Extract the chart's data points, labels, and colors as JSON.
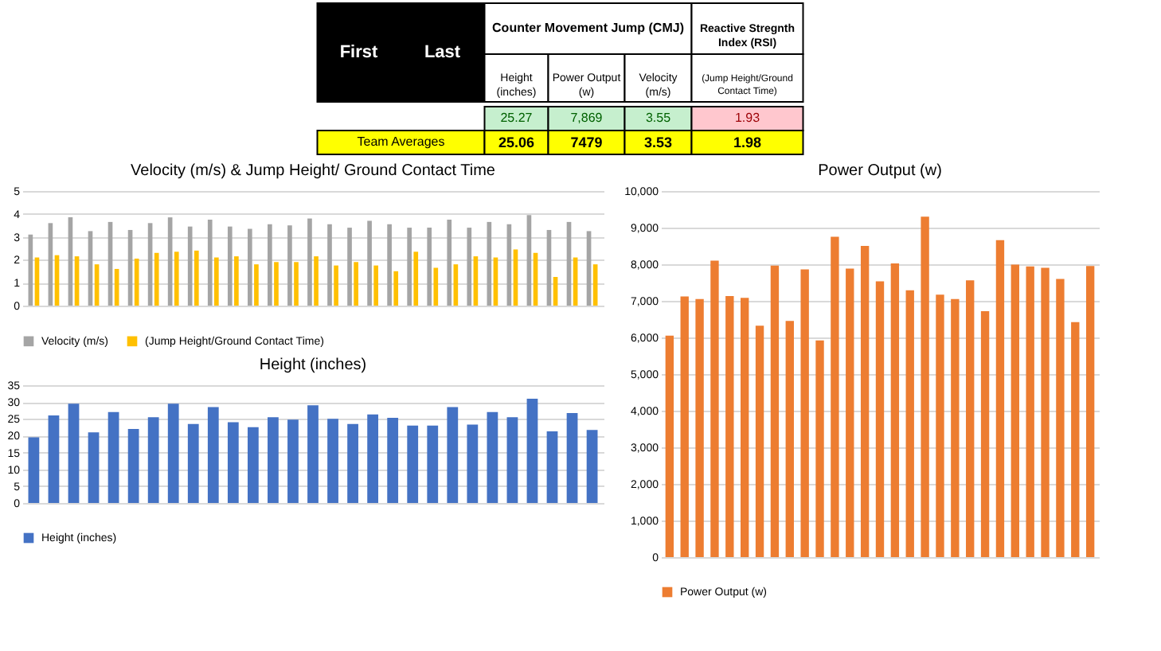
{
  "chart_data": [
    {
      "type": "other",
      "annotations": [
        "First",
        "Last",
        "Counter Movement Jump (CMJ)",
        "Reactive Stregnth Index (RSI)",
        "Height (inches)",
        "Power Output (w)",
        "Velocity (m/s)",
        "(Jump Height/Ground Contact Time)",
        "25.27",
        "7,869",
        "3.55",
        "1.93",
        "Team Averages",
        "25.06",
        "7479",
        "3.53",
        "1.98"
      ]
    },
    {
      "type": "bar",
      "title": "Velocity (m/s) & Jump Height/ Ground Contact Time",
      "categories": [
        null,
        null,
        null,
        null,
        null,
        null,
        null,
        null,
        null,
        null,
        null,
        null,
        null,
        null,
        null,
        null,
        null,
        null,
        null,
        null,
        null,
        null,
        null,
        null,
        null,
        null,
        null,
        null,
        null
      ],
      "series": [
        {
          "name": "Velocity (m/s)",
          "color": "#a5a5a5",
          "values": [
            3.1,
            3.6,
            3.85,
            3.25,
            3.65,
            3.3,
            3.6,
            3.85,
            3.45,
            3.75,
            3.45,
            3.35,
            3.55,
            3.5,
            3.8,
            3.55,
            3.4,
            3.7,
            3.55,
            3.4,
            3.4,
            3.75,
            3.4,
            3.65,
            3.55,
            3.95,
            3.3,
            3.65,
            3.25
          ]
        },
        {
          "name": "(Jump Height/Ground Contact Time)",
          "color": "#ffc000",
          "values": [
            2.1,
            2.2,
            2.15,
            1.8,
            1.6,
            2.05,
            2.3,
            2.35,
            2.4,
            2.1,
            2.15,
            1.8,
            1.9,
            1.9,
            2.15,
            1.75,
            1.9,
            1.75,
            1.5,
            2.35,
            1.65,
            1.8,
            2.15,
            2.1,
            2.45,
            2.3,
            1.25,
            2.1,
            1.8
          ]
        }
      ],
      "ylim": [
        0,
        5
      ],
      "yticks": [
        0,
        1,
        2,
        3,
        4,
        5
      ],
      "grid": "y",
      "legend": "bottom",
      "tick_labels": "y"
    },
    {
      "type": "bar",
      "title": "Height (inches)",
      "categories": [
        null,
        null,
        null,
        null,
        null,
        null,
        null,
        null,
        null,
        null,
        null,
        null,
        null,
        null,
        null,
        null,
        null,
        null,
        null,
        null,
        null,
        null,
        null,
        null,
        null,
        null,
        null,
        null,
        null
      ],
      "series": [
        {
          "name": "Height (inches)",
          "color": "#4472c4",
          "values": [
            19.5,
            26,
            29.5,
            21,
            27,
            22,
            25.5,
            29.5,
            23.5,
            28.5,
            24,
            22.5,
            25.5,
            24.8,
            29,
            25,
            23.5,
            26.3,
            25.3,
            23,
            23,
            28.5,
            23.3,
            27,
            25.5,
            31,
            21.3,
            26.7,
            21.7
          ]
        }
      ],
      "ylim": [
        0,
        35
      ],
      "yticks": [
        0,
        5,
        10,
        15,
        20,
        25,
        30,
        35
      ],
      "grid": "y",
      "legend": "bottom",
      "tick_labels": "y"
    },
    {
      "type": "bar",
      "title": "Power Output (w)",
      "categories": [
        null,
        null,
        null,
        null,
        null,
        null,
        null,
        null,
        null,
        null,
        null,
        null,
        null,
        null,
        null,
        null,
        null,
        null,
        null,
        null,
        null,
        null,
        null,
        null,
        null,
        null,
        null,
        null,
        null
      ],
      "series": [
        {
          "name": "Power Output (w)",
          "color": "#ed7d31",
          "values": [
            6050,
            7120,
            7050,
            8100,
            7130,
            7080,
            6320,
            7960,
            6450,
            7860,
            5920,
            8750,
            7880,
            8500,
            7530,
            8020,
            7290,
            9300,
            7170,
            7050,
            7560,
            6720,
            8660,
            7990,
            7940,
            7900,
            7600,
            6420,
            7950
          ]
        }
      ],
      "ylim": [
        0,
        10000
      ],
      "yticks": [
        0,
        {
          "value": 1000,
          "label": "1,000"
        },
        {
          "value": 2000,
          "label": "2,000"
        },
        {
          "value": 3000,
          "label": "3,000"
        },
        {
          "value": 4000,
          "label": "4,000"
        },
        {
          "value": 5000,
          "label": "5,000"
        },
        {
          "value": 6000,
          "label": "6,000"
        },
        {
          "value": 7000,
          "label": "7,000"
        },
        {
          "value": 8000,
          "label": "8,000"
        },
        {
          "value": 9000,
          "label": "9,000"
        },
        {
          "value": 10000,
          "label": "10,000"
        }
      ],
      "grid": "y",
      "legend": "bottom",
      "tick_labels": "y"
    }
  ]
}
